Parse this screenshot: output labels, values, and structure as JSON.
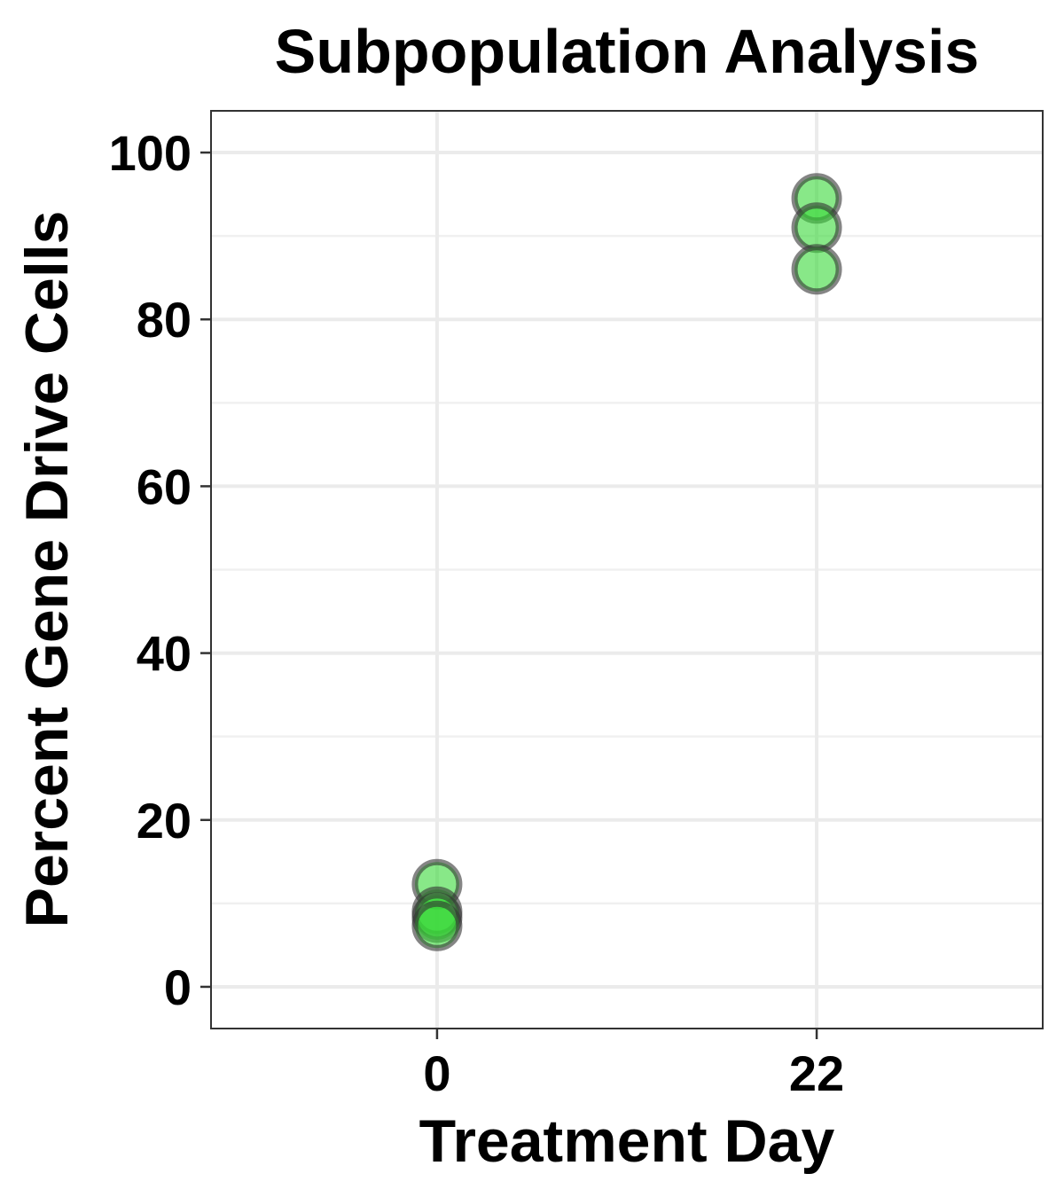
{
  "chart_data": {
    "type": "scatter",
    "title": "Subpopulation Analysis",
    "xlabel": "Treatment Day",
    "ylabel": "Percent Gene Drive Cells",
    "x_ticks": [
      0,
      22
    ],
    "y_ticks": [
      0,
      20,
      40,
      60,
      80,
      100
    ],
    "xlim": [
      -13.1,
      35.1
    ],
    "ylim": [
      -5,
      105
    ],
    "grid": true,
    "legend": "none",
    "point_color": "#39d939",
    "point_edge_color": "#333333",
    "points": [
      {
        "x": 0,
        "y": 12.3
      },
      {
        "x": 0,
        "y": 9.0
      },
      {
        "x": 0,
        "y": 8.3
      },
      {
        "x": 0,
        "y": 7.3
      },
      {
        "x": 22,
        "y": 94.5
      },
      {
        "x": 22,
        "y": 91.0
      },
      {
        "x": 22,
        "y": 86.0
      }
    ]
  }
}
